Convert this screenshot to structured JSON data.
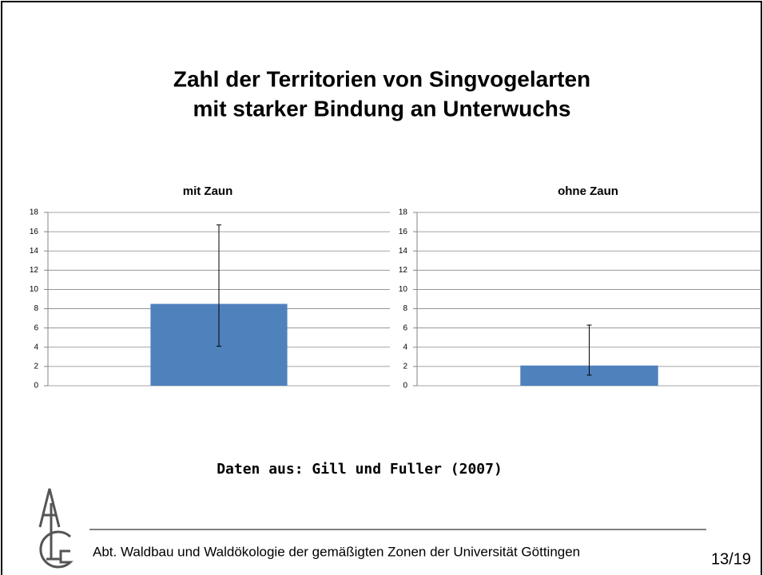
{
  "title_lines": [
    "Zahl der Territorien von Singvogelarten",
    "mit starker Bindung an Unterwuchs"
  ],
  "source": "Daten aus: Gill und Fuller (2007)",
  "footer": "Abt. Waldbau und Waldökologie der gemäßigten Zonen der Universität Göttingen",
  "page_number": "13/19",
  "chart_data": [
    {
      "type": "bar",
      "title": "mit Zaun",
      "categories": [
        null
      ],
      "values": [
        8.5
      ],
      "error_minus": [
        4.4
      ],
      "error_plus": [
        8.2
      ],
      "color": "#4f81bd",
      "ylim": [
        0,
        18
      ],
      "yticks": [
        0,
        2,
        4,
        6,
        8,
        10,
        12,
        14,
        16,
        18
      ],
      "grid": true
    },
    {
      "type": "bar",
      "title": "ohne Zaun",
      "categories": [
        null
      ],
      "values": [
        2.1
      ],
      "error_minus": [
        1.0
      ],
      "error_plus": [
        4.2
      ],
      "color": "#4f81bd",
      "ylim": [
        0,
        18
      ],
      "yticks": [
        0,
        2,
        4,
        6,
        8,
        10,
        12,
        14,
        16,
        18
      ],
      "grid": true
    }
  ]
}
